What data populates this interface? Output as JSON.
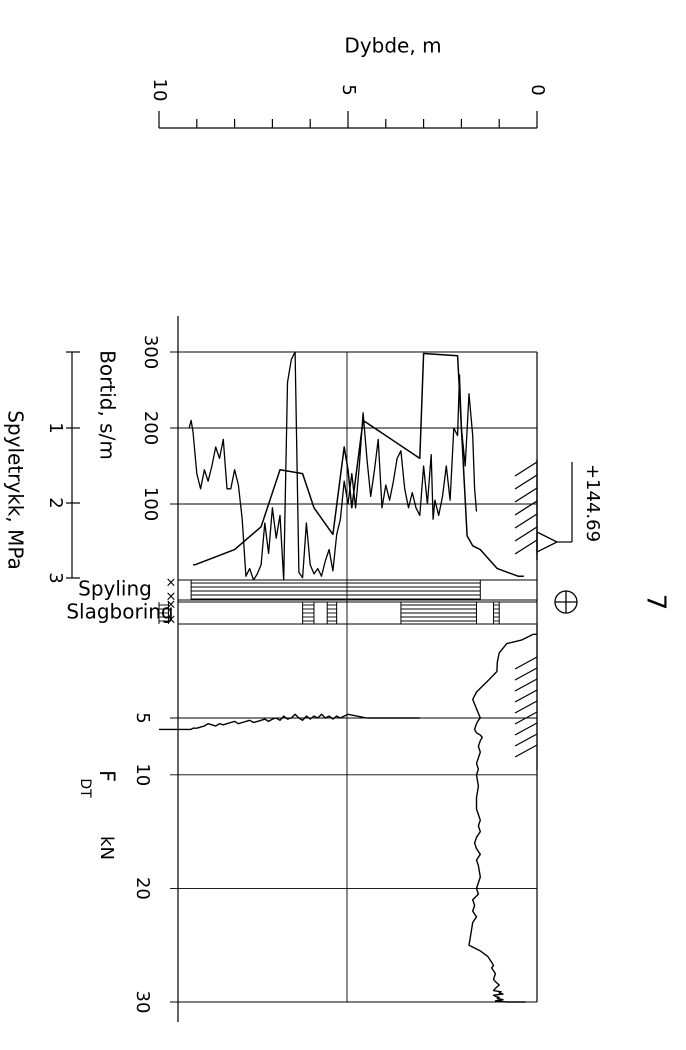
{
  "borehole": {
    "id": "7",
    "elevation": "+144.69",
    "symbol": "circle-cross-symbol"
  },
  "chart_data": [
    {
      "type": "axis",
      "title": "Dybde, m",
      "ticks": [
        "10",
        "5",
        "0"
      ],
      "range": [
        10,
        0
      ],
      "minor_step": 1
    },
    {
      "type": "line",
      "title": "Bortid, s/m",
      "ticks": [
        "300",
        "200",
        "100"
      ],
      "xlabel": "Dybde, m",
      "ylabel": "Bortid, s/m",
      "xlim": [
        0,
        10
      ],
      "ylim": [
        0,
        300
      ],
      "series": [
        {
          "x": [
            0.35,
            0.5,
            1.05,
            1.05,
            1.5,
            1.5,
            1.7,
            1.7,
            1.85,
            1.85,
            2.1,
            2.1,
            3,
            3,
            3.1,
            3.1,
            4.6,
            4.6,
            4.9,
            4.9,
            5,
            5,
            5.1,
            5.1,
            5.4,
            5.4,
            5.9,
            5.9,
            6.2,
            6.2,
            6.8,
            6.8,
            7.3,
            7.3,
            8,
            8,
            9.05,
            9.05,
            9.1
          ],
          "y": [
            5,
            5,
            15,
            15,
            40,
            40,
            45,
            45,
            58,
            58,
            295,
            295,
            298,
            298,
            160,
            160,
            210,
            210,
            95,
            95,
            145,
            145,
            175,
            175,
            60,
            60,
            95,
            95,
            140,
            140,
            145,
            145,
            70,
            70,
            40,
            40,
            20,
            20,
            20
          ]
        },
        {
          "x": [
            1.6,
            1.65,
            1.7,
            1.8,
            1.9,
            2.0,
            2.05,
            2.1,
            2.2,
            2.3,
            2.4,
            2.5,
            2.6,
            2.7,
            2.75,
            2.8,
            2.9,
            3.0,
            3.1,
            3.2,
            3.3,
            3.4,
            3.5,
            3.6,
            3.7,
            3.8,
            3.9,
            4.0,
            4.1,
            4.2,
            4.3,
            4.4,
            4.5,
            4.6,
            4.7,
            4.8,
            4.9,
            5.0,
            5.1,
            5.2,
            5.3,
            5.4,
            5.5,
            5.6,
            5.7,
            5.8,
            5.9,
            6.0,
            6.1,
            6.2,
            6.3,
            6.4,
            6.5,
            6.6,
            6.7,
            6.8,
            6.9,
            7.0,
            7.1,
            7.2,
            7.3,
            7.4,
            7.5,
            7.6,
            7.7,
            7.8,
            7.9,
            8.0,
            8.1,
            8.2,
            8.3,
            8.4,
            8.5,
            8.6,
            8.7,
            8.8,
            8.9,
            9.0,
            9.1,
            9.15,
            9.2
          ],
          "y": [
            90,
            120,
            190,
            245,
            150,
            200,
            270,
            190,
            200,
            105,
            150,
            110,
            85,
            105,
            80,
            165,
            100,
            150,
            85,
            95,
            115,
            95,
            120,
            170,
            160,
            130,
            105,
            125,
            95,
            185,
            145,
            110,
            160,
            220,
            150,
            95,
            140,
            100,
            130,
            80,
            60,
            12,
            40,
            25,
            5,
            15,
            8,
            20,
            75,
            3,
            10,
            300,
            290,
            260,
            0,
            85,
            55,
            95,
            35,
            75,
            20,
            8,
            0,
            15,
            5,
            80,
            125,
            145,
            120,
            120,
            185,
            160,
            175,
            150,
            130,
            145,
            120,
            140,
            195,
            210,
            200
          ]
        }
      ]
    },
    {
      "type": "axis",
      "title": "Spyletrykk, MPa",
      "ticks": [
        "1",
        "2",
        "3"
      ],
      "range": [
        0,
        3
      ]
    },
    {
      "type": "table",
      "title": "Spyling",
      "xlim": [
        0,
        10
      ],
      "intervals": [
        [
          1.5,
          9.15
        ]
      ]
    },
    {
      "type": "table",
      "title": "Slagboring",
      "xlim": [
        0,
        10
      ],
      "intervals": [
        [
          1.0,
          1.15
        ],
        [
          1.6,
          3.6
        ],
        [
          5.3,
          5.55
        ],
        [
          5.9,
          6.2
        ],
        [
          9.75,
          10
        ]
      ]
    },
    {
      "type": "line",
      "title": "F",
      "subscript": "DT",
      "unit": "kN",
      "ticks": [
        "5",
        "10",
        "20",
        "30"
      ],
      "xlabel": "Dybde, m",
      "xlim": [
        0,
        10
      ],
      "ylim": [
        0,
        30
      ],
      "series": [
        {
          "x": [
            0,
            0.1,
            0.4,
            0.8,
            1.0,
            1.05,
            1.06,
            1.3,
            1.5,
            1.55,
            1.6,
            1.7,
            1.6,
            1.5,
            1.55,
            1.6,
            1.65,
            1.6,
            1.5,
            1.45,
            1.5,
            1.55,
            1.5,
            1.55,
            1.6,
            1.55,
            1.6,
            1.55,
            1.6,
            1.6,
            1.5,
            1.55,
            1.5,
            1.6,
            1.65,
            1.6,
            1.5,
            1.6,
            1.55,
            1.5,
            1.6,
            1.55,
            1.7,
            1.65,
            1.7,
            1.6,
            1.7,
            1.75,
            1.8,
            1.5,
            1.3,
            1.2,
            1.15,
            1.2,
            1.1,
            1.15,
            1.1,
            1.0,
            1.1,
            1.15,
            0.95,
            1.0,
            0.9,
            1.15,
            1.1,
            1.0,
            1.05,
            0.9,
            1.1,
            0.8,
            0.6,
            0.4,
            0.3
          ],
          "y": [
            0.5,
            0.5,
            0.8,
            1.0,
            1.5,
            2.0,
            2.5,
            3.0,
            3.4,
            3.5,
            3.6,
            4.0,
            4.5,
            5.0,
            5.2,
            5.5,
            6.0,
            6.3,
            6.5,
            6.7,
            7.0,
            7.5,
            8.0,
            8.5,
            9.0,
            9.5,
            10.0,
            11.0,
            12.0,
            13.0,
            14.0,
            14.5,
            15.0,
            15.5,
            16.0,
            16.5,
            17.0,
            17.5,
            18.0,
            19.0,
            20.0,
            20.5,
            21.0,
            21.5,
            22.0,
            22.5,
            23.0,
            24.0,
            25.0,
            25.5,
            26.0,
            26.5,
            26.8,
            27.0,
            27.5,
            28.0,
            28.2,
            28.5,
            28.8,
            29.0,
            29.1,
            29.2,
            29.3,
            29.4,
            29.5,
            29.6,
            29.7,
            29.8,
            29.9,
            30,
            30,
            30,
            30
          ]
        },
        {
          "x": [
            3.1,
            3.3,
            4.3,
            4.5,
            5.0,
            5.1,
            5.2,
            5.3,
            5.4,
            5.5,
            5.6,
            5.7,
            5.8,
            5.9,
            6.0,
            6.1,
            6.2,
            6.3,
            6.4,
            6.5,
            6.6,
            6.7,
            6.8,
            6.9,
            7.0,
            7.1,
            7.2,
            7.3,
            7.4,
            7.5,
            7.6,
            7.7,
            7.8,
            7.9,
            8.0,
            8.1,
            8.2,
            8.3,
            8.4,
            8.5,
            8.6,
            8.7,
            8.8,
            8.9,
            9.0,
            9.05,
            9.1,
            9.15,
            9.2,
            9.3,
            9.6,
            9.8,
            10.0
          ],
          "y": [
            5.0,
            5.0,
            5.0,
            5.0,
            4.8,
            4.9,
            5.0,
            4.9,
            5.1,
            4.9,
            5.0,
            4.8,
            5.0,
            4.9,
            5.1,
            4.9,
            5.2,
            5.0,
            4.8,
            5.0,
            5.1,
            4.9,
            5.2,
            5.0,
            5.1,
            5.3,
            5.1,
            5.2,
            5.3,
            5.4,
            5.2,
            5.3,
            5.4,
            5.5,
            5.3,
            5.4,
            5.5,
            5.6,
            5.5,
            5.7,
            5.6,
            5.5,
            5.7,
            5.8,
            5.9,
            5.9,
            5.9,
            6.0,
            6.0,
            6.0,
            6.0,
            6.0,
            6.0
          ]
        }
      ]
    }
  ]
}
